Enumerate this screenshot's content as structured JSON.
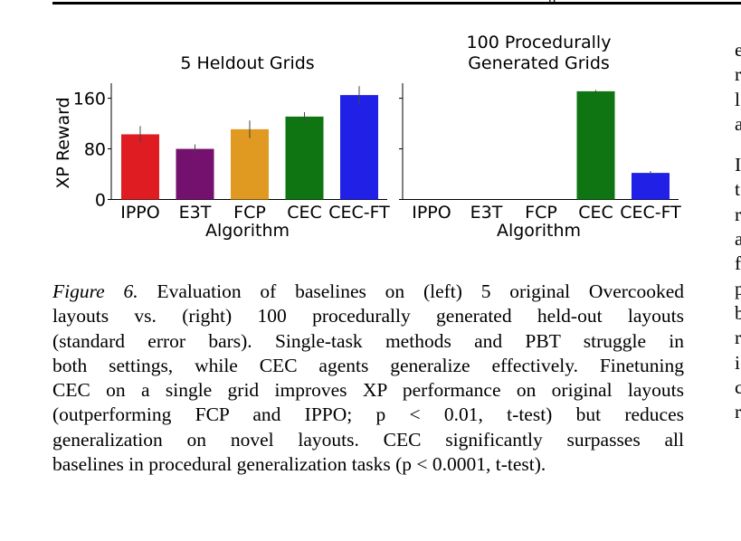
{
  "page": {
    "top_fragment": "p"
  },
  "chart_data": [
    {
      "type": "bar",
      "title": "5 Heldout Grids",
      "xlabel": "Algorithm",
      "ylabel": "XP Reward",
      "yticks": [
        "0",
        "80",
        "160"
      ],
      "ylim": [
        0,
        178
      ],
      "categories": [
        "IPPO",
        "E3T",
        "FCP",
        "CEC",
        "CEC-FT"
      ],
      "values": [
        103,
        80,
        111,
        131,
        165
      ],
      "errors": [
        13,
        7,
        14,
        7,
        14
      ],
      "colors": [
        "#e01c23",
        "#74116e",
        "#e09a22",
        "#0e7512",
        "#2020e6"
      ],
      "grid": false
    },
    {
      "type": "bar",
      "title": "100 Procedurally Generated Grids",
      "title_lines": [
        "100 Procedurally",
        "Generated Grids"
      ],
      "xlabel": "Algorithm",
      "ylabel": "",
      "ylim": [
        0,
        178
      ],
      "categories": [
        "IPPO",
        "E3T",
        "FCP",
        "CEC",
        "CEC-FT"
      ],
      "values": [
        0,
        0,
        0,
        171,
        42
      ],
      "errors": [
        0,
        0,
        0,
        2,
        3
      ],
      "colors": [
        "#e01c23",
        "#74116e",
        "#e09a22",
        "#0e7512",
        "#2020e6"
      ],
      "grid": false
    }
  ],
  "caption": {
    "label": "Figure 6.",
    "lines": [
      " Evaluation of baselines on (left) 5 original Overcooked",
      "layouts vs.  (right) 100 procedurally generated held-out layouts",
      "(standard error bars).  Single-task methods and PBT struggle in",
      "both settings, while CEC agents generalize effectively. Finetuning",
      "CEC on a single grid improves XP performance on original layouts",
      "(outperforming FCP and IPPO; p < 0.01, t-test) but reduces",
      "generalization on novel layouts. CEC significantly surpasses all",
      "baselines in procedural generalization tasks (p < 0.0001, t-test)."
    ]
  },
  "right_column": {
    "lines_a": [
      "e",
      "r",
      "l",
      "a"
    ],
    "lines_b": [
      "I",
      "t",
      "r",
      "a",
      "f",
      "p",
      "b",
      "r",
      "i",
      "c",
      "r"
    ]
  }
}
